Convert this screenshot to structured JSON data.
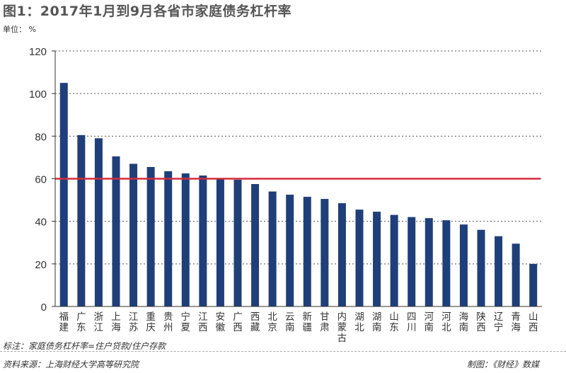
{
  "title": "图1：2017年1月到9月各省市家庭债务杠杆率",
  "unit_label": "单位：  %",
  "note": "标注：家庭债务杠杆率=住户贷款/住户存款",
  "source": "资料来源：上海财经大学高等研究院",
  "credit": "制图：《财经》数媒",
  "colors": {
    "bar": "#1f3f7a",
    "reference_line": "#d42a3c",
    "grid": "#555555"
  },
  "chart_data": {
    "type": "bar",
    "title": "图1：2017年1月到9月各省市家庭债务杠杆率",
    "ylabel": "单位：  %",
    "xlabel": "",
    "ylim": [
      0,
      120
    ],
    "yticks": [
      0,
      20,
      40,
      60,
      80,
      100,
      120
    ],
    "grid": true,
    "reference_line": 60,
    "categories": [
      "福建",
      "广东",
      "浙江",
      "上海",
      "江苏",
      "重庆",
      "贵州",
      "宁夏",
      "江西",
      "安徽",
      "广西",
      "西藏",
      "北京",
      "云南",
      "新疆",
      "甘肃",
      "内蒙古",
      "湖北",
      "湖南",
      "山东",
      "四川",
      "河南",
      "河北",
      "海南",
      "陕西",
      "辽宁",
      "青海",
      "山西"
    ],
    "values": [
      105,
      80.5,
      79,
      70.5,
      67,
      65.5,
      63.5,
      62.5,
      61.5,
      60,
      59.5,
      57.5,
      54,
      52.5,
      51.5,
      50.5,
      48.5,
      45.5,
      44.5,
      43,
      42,
      41.5,
      40.5,
      38.5,
      36,
      33,
      29.5,
      20
    ]
  }
}
